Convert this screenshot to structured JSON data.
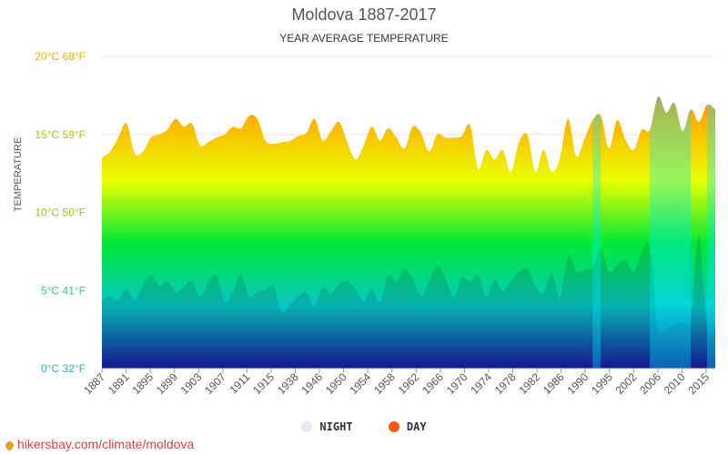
{
  "header": {
    "title": "Moldova 1887-2017",
    "subtitle": "YEAR AVERAGE TEMPERATURE"
  },
  "legend": {
    "night_label": "NIGHT",
    "day_label": "DAY",
    "night_color": "#e6e9f2",
    "day_color": "#f05a14"
  },
  "source": {
    "text": "hikersbay.com/climate/moldova"
  },
  "chart_data": {
    "type": "area",
    "title": "Moldova 1887-2017",
    "subtitle": "YEAR AVERAGE TEMPERATURE",
    "ylabel": "TEMPERATURE",
    "ylim": [
      0,
      20
    ],
    "y_ticks": [
      {
        "value": 0,
        "label": "0°C 32°F",
        "color": "#2ab0d0"
      },
      {
        "value": 5,
        "label": "5°C 41°F",
        "color": "#2ac8b0"
      },
      {
        "value": 10,
        "label": "10°C 50°F",
        "color": "#9ac020"
      },
      {
        "value": 15,
        "label": "15°C 59°F",
        "color": "#b8c010"
      },
      {
        "value": 20,
        "label": "20°C 68°F",
        "color": "#f0b000"
      }
    ],
    "x_tick_labels": [
      "1887",
      "1891",
      "1895",
      "1899",
      "1903",
      "1907",
      "1911",
      "1915",
      "1938",
      "1946",
      "1950",
      "1954",
      "1958",
      "1962",
      "1966",
      "1970",
      "1974",
      "1978",
      "1982",
      "1986",
      "1990",
      "1995",
      "2002",
      "2006",
      "2010",
      "2015"
    ],
    "gradient_stops": [
      "#1a1aa6",
      "#08c8c8",
      "#00e838",
      "#e8ff00",
      "#ffb000",
      "#ff3020"
    ],
    "series": [
      {
        "name": "DAY",
        "color": "#f05a14",
        "values": [
          13.5,
          13.9,
          14.8,
          15.7,
          13.8,
          13.9,
          14.8,
          15.0,
          15.3,
          16.0,
          15.5,
          15.7,
          14.3,
          14.5,
          14.8,
          15.0,
          15.5,
          15.4,
          16.2,
          16.0,
          14.6,
          14.4,
          14.5,
          14.6,
          14.9,
          15.1,
          16.0,
          14.6,
          15.2,
          15.8,
          14.5,
          13.4,
          14.3,
          15.5,
          14.6,
          15.4,
          14.8,
          14.1,
          15.5,
          15.1,
          13.9,
          15.0,
          14.8,
          14.8,
          14.9,
          15.6,
          12.8,
          14.0,
          13.4,
          14.0,
          12.6,
          14.5,
          15.0,
          12.6,
          14.0,
          12.6,
          13.5,
          16.0,
          13.6,
          14.7,
          15.9,
          16.2,
          14.1,
          15.9,
          14.7,
          14.0,
          15.3,
          15.3,
          17.4,
          16.4,
          17.0,
          15.2,
          16.6,
          15.8,
          16.9,
          16.6
        ]
      },
      {
        "name": "NIGHT",
        "color": "#e6e9f2",
        "values": [
          4.4,
          4.6,
          4.4,
          5.1,
          4.4,
          5.3,
          6.0,
          5.3,
          5.6,
          4.9,
          5.2,
          5.6,
          4.6,
          5.5,
          6.0,
          4.3,
          4.9,
          6.0,
          4.6,
          4.9,
          5.0,
          5.3,
          3.6,
          4.1,
          4.6,
          4.9,
          4.0,
          5.2,
          4.8,
          5.4,
          5.6,
          5.1,
          4.3,
          5.1,
          4.2,
          6.0,
          5.6,
          6.4,
          5.8,
          4.6,
          5.6,
          6.6,
          5.8,
          4.6,
          5.8,
          5.6,
          6.0,
          4.6,
          5.7,
          4.9,
          5.6,
          6.2,
          6.4,
          5.3,
          4.8,
          6.2,
          4.5,
          7.2,
          6.2,
          6.3,
          6.5,
          7.6,
          6.2,
          6.6,
          7.0,
          6.2,
          7.4,
          7.8,
          2.6,
          2.6,
          2.8,
          3.0,
          3.2,
          8.5,
          2.6,
          2.6
        ]
      }
    ],
    "gap_ranges": [
      {
        "from_index": 60,
        "to_index": 61
      },
      {
        "from_index": 67,
        "to_index": 72
      },
      {
        "from_index": 74,
        "to_index": 75
      }
    ],
    "grid": true,
    "legend_position": "bottom-center"
  }
}
